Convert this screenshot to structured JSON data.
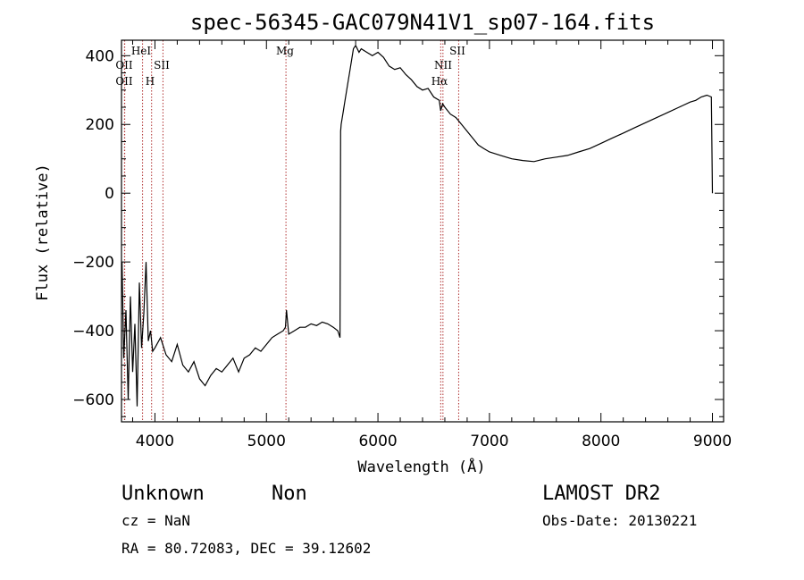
{
  "chart_data": {
    "type": "line",
    "title": "spec-56345-GAC079N41V1_sp07-164.fits",
    "xlabel": "Wavelength (Å)",
    "ylabel": "Flux (relative)",
    "xlim": [
      3700,
      9100
    ],
    "ylim": [
      -665,
      445
    ],
    "x_ticks": [
      4000,
      5000,
      6000,
      7000,
      8000,
      9000
    ],
    "x_tick_labels": [
      "4000",
      "5000",
      "6000",
      "7000",
      "8000",
      "9000"
    ],
    "y_ticks": [
      -600,
      -400,
      -200,
      0,
      200,
      400
    ],
    "y_tick_labels": [
      "−600",
      "−400",
      "−200",
      "0",
      "200",
      "400"
    ],
    "grid": false,
    "series": [
      {
        "color": "#000000",
        "x": [
          3705,
          3720,
          3740,
          3760,
          3780,
          3800,
          3820,
          3840,
          3860,
          3880,
          3900,
          3920,
          3940,
          3960,
          3980,
          4000,
          4050,
          4100,
          4150,
          4200,
          4250,
          4300,
          4350,
          4400,
          4450,
          4500,
          4550,
          4600,
          4650,
          4700,
          4750,
          4800,
          4850,
          4900,
          4950,
          5000,
          5050,
          5100,
          5150,
          5170,
          5180,
          5200,
          5250,
          5300,
          5350,
          5400,
          5450,
          5500,
          5550,
          5600,
          5640,
          5660,
          5665,
          5670,
          5690,
          5700,
          5720,
          5750,
          5780,
          5800,
          5830,
          5850,
          5900,
          5950,
          6000,
          6050,
          6100,
          6150,
          6200,
          6250,
          6300,
          6350,
          6400,
          6450,
          6500,
          6550,
          6563,
          6580,
          6600,
          6650,
          6700,
          6750,
          6800,
          6850,
          6900,
          6950,
          7000,
          7050,
          7100,
          7150,
          7200,
          7300,
          7400,
          7500,
          7600,
          7700,
          7800,
          7900,
          8000,
          8100,
          8200,
          8300,
          8400,
          8500,
          8600,
          8700,
          8800,
          8850,
          8900,
          8950,
          8990,
          9000
        ],
        "y": [
          -200,
          -480,
          -340,
          -600,
          -300,
          -520,
          -380,
          -620,
          -260,
          -450,
          -350,
          -200,
          -430,
          -400,
          -460,
          -450,
          -420,
          -470,
          -490,
          -440,
          -500,
          -520,
          -490,
          -540,
          -560,
          -530,
          -510,
          -520,
          -500,
          -480,
          -520,
          -480,
          -470,
          -450,
          -460,
          -440,
          -420,
          -410,
          -400,
          -390,
          -340,
          -410,
          -400,
          -390,
          -390,
          -380,
          -385,
          -375,
          -380,
          -390,
          -400,
          -420,
          180,
          200,
          240,
          260,
          300,
          360,
          420,
          430,
          410,
          420,
          410,
          400,
          410,
          395,
          370,
          360,
          365,
          345,
          330,
          310,
          300,
          305,
          280,
          270,
          240,
          260,
          250,
          230,
          220,
          200,
          180,
          160,
          140,
          130,
          120,
          115,
          110,
          105,
          100,
          95,
          92,
          100,
          105,
          110,
          120,
          130,
          145,
          160,
          175,
          190,
          205,
          220,
          235,
          250,
          265,
          270,
          280,
          285,
          280,
          0
        ]
      }
    ],
    "lines": [
      {
        "name": "OII",
        "x": 3727
      },
      {
        "name": "OII",
        "x": 3729
      },
      {
        "name": "HeI",
        "x": 3889
      },
      {
        "name": "H",
        "x": 3970
      },
      {
        "name": "SII",
        "x": 4072
      },
      {
        "name": "Mg",
        "x": 5175
      },
      {
        "name": "NII",
        "x": 6583
      },
      {
        "name": "Hα",
        "x": 6563
      },
      {
        "name": "SII",
        "x": 6724
      }
    ]
  },
  "info": {
    "class": "Unknown",
    "subclass": "Non",
    "survey": "LAMOST DR2",
    "cz": "cz = NaN",
    "obs_date": "Obs-Date: 20130221",
    "coords": "RA =  80.72083, DEC =  39.12602"
  }
}
